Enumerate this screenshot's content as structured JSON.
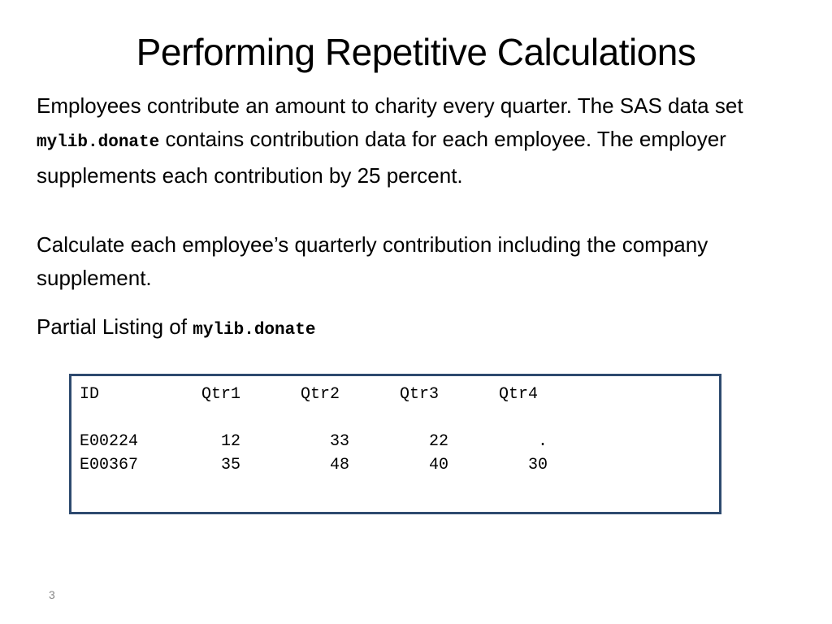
{
  "slide": {
    "title": "Performing Repetitive Calculations",
    "para1": {
      "text_before": "Employees contribute an amount to charity every quarter. The SAS data set ",
      "code": "mylib.donate",
      "text_after": " contains contribution data for each employee. The employer supplements each contribution by 25 percent."
    },
    "para2": "Calculate each employee’s quarterly contribution including the company supplement.",
    "para3": {
      "text_before": "Partial Listing of ",
      "code": "mylib.donate"
    },
    "listing": {
      "headers": [
        "ID",
        "Qtr1",
        "Qtr2",
        "Qtr3",
        "Qtr4"
      ],
      "rows": [
        [
          "E00224",
          "  12",
          "   33",
          "   22",
          "    ."
        ],
        [
          "E00367",
          "  35",
          "   48",
          "   40",
          "   30"
        ]
      ]
    },
    "page_number": "3"
  },
  "colors": {
    "box_border": "#2e4a6f",
    "page_number": "#888888"
  }
}
